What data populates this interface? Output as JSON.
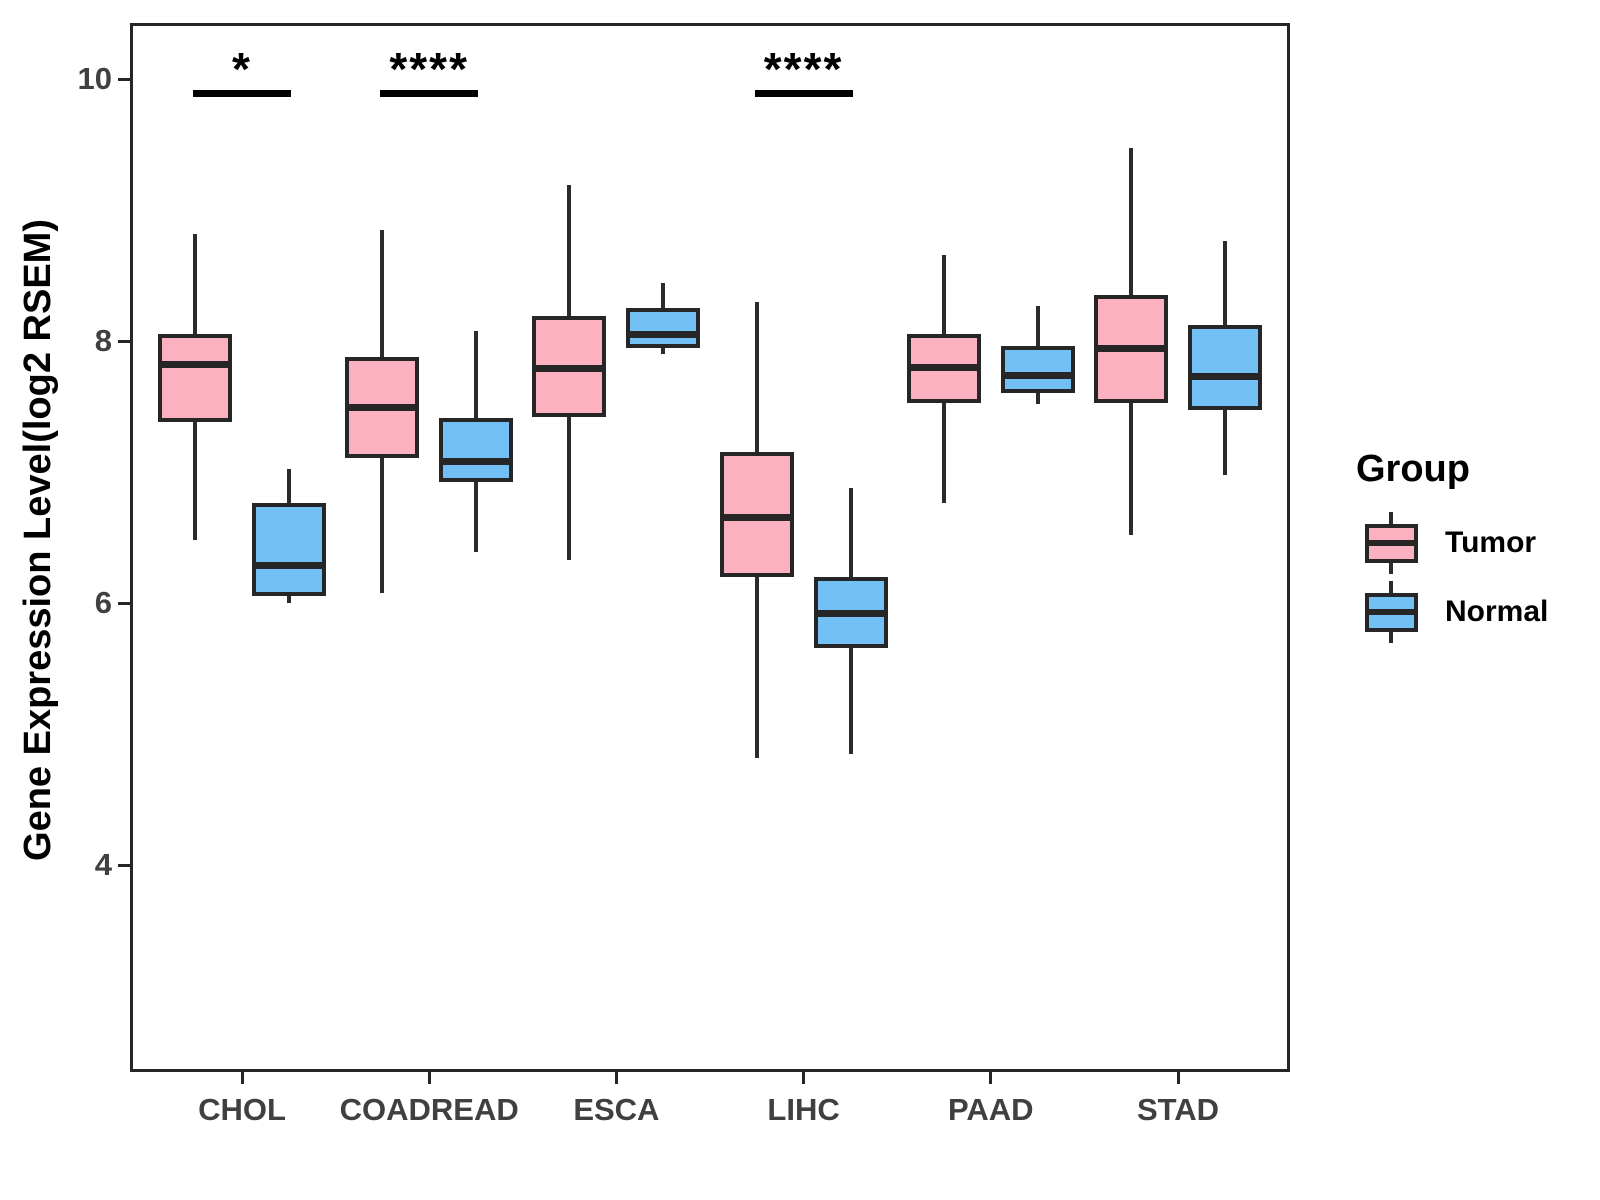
{
  "chart_data": {
    "type": "grouped_boxplot",
    "title": "",
    "xlabel": "",
    "ylabel": "Gene Expression Level(log2 RSEM)",
    "categories": [
      "CHOL",
      "COADREAD",
      "ESCA",
      "LIHC",
      "PAAD",
      "STAD"
    ],
    "yticks": [
      4,
      6,
      8,
      10
    ],
    "ylim": [
      2.4,
      10.45
    ],
    "grid": false,
    "legend": {
      "title": "Group",
      "position": "right",
      "entries": [
        "Tumor",
        "Normal"
      ]
    },
    "colors": {
      "Tumor": "#FCB1C0",
      "Normal": "#73C0F7",
      "stroke": "#262626"
    },
    "series": [
      {
        "name": "Tumor",
        "boxes": [
          {
            "category": "CHOL",
            "whisker_low": 6.48,
            "q1": 7.38,
            "median": 7.82,
            "q3": 8.05,
            "whisker_high": 8.82
          },
          {
            "category": "COADREAD",
            "whisker_low": 6.08,
            "q1": 7.11,
            "median": 7.49,
            "q3": 7.88,
            "whisker_high": 8.85
          },
          {
            "category": "ESCA",
            "whisker_low": 6.33,
            "q1": 7.42,
            "median": 7.79,
            "q3": 8.19,
            "whisker_high": 9.19
          },
          {
            "category": "LIHC",
            "whisker_low": 4.82,
            "q1": 6.2,
            "median": 6.65,
            "q3": 7.15,
            "whisker_high": 8.3
          },
          {
            "category": "PAAD",
            "whisker_low": 6.76,
            "q1": 7.53,
            "median": 7.8,
            "q3": 8.05,
            "whisker_high": 8.66
          },
          {
            "category": "STAD",
            "whisker_low": 6.52,
            "q1": 7.53,
            "median": 7.94,
            "q3": 8.35,
            "whisker_high": 9.47
          }
        ]
      },
      {
        "name": "Normal",
        "boxes": [
          {
            "category": "CHOL",
            "whisker_low": 6.0,
            "q1": 6.05,
            "median": 6.29,
            "q3": 6.76,
            "whisker_high": 7.02
          },
          {
            "category": "COADREAD",
            "whisker_low": 6.39,
            "q1": 6.92,
            "median": 7.08,
            "q3": 7.41,
            "whisker_high": 8.08
          },
          {
            "category": "ESCA",
            "whisker_low": 7.9,
            "q1": 7.95,
            "median": 8.05,
            "q3": 8.25,
            "whisker_high": 8.44
          },
          {
            "category": "LIHC",
            "whisker_low": 4.85,
            "q1": 5.66,
            "median": 5.92,
            "q3": 6.2,
            "whisker_high": 6.88
          },
          {
            "category": "PAAD",
            "whisker_low": 7.52,
            "q1": 7.6,
            "median": 7.74,
            "q3": 7.96,
            "whisker_high": 8.27
          },
          {
            "category": "STAD",
            "whisker_low": 6.98,
            "q1": 7.47,
            "median": 7.73,
            "q3": 8.12,
            "whisker_high": 8.76
          }
        ]
      }
    ],
    "significance": [
      {
        "category": "CHOL",
        "label": "*"
      },
      {
        "category": "COADREAD",
        "label": "****"
      },
      {
        "category": "LIHC",
        "label": "****"
      }
    ]
  }
}
